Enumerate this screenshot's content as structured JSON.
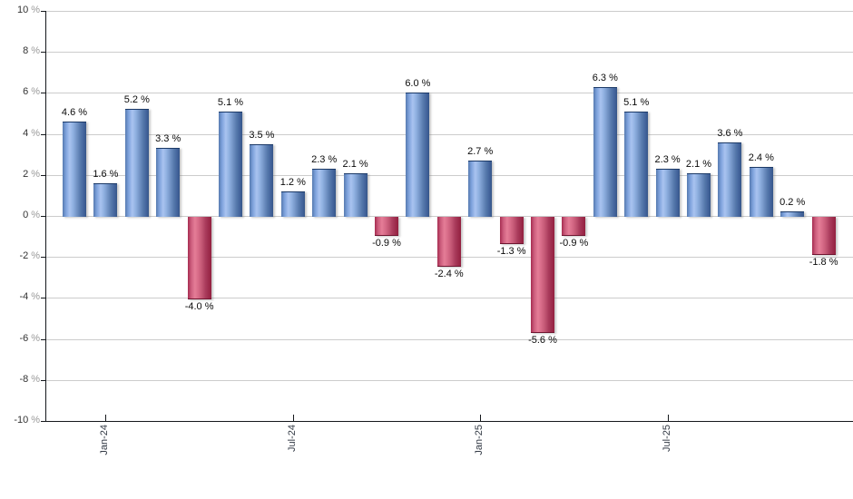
{
  "chart_data": {
    "type": "bar",
    "title": "",
    "xlabel": "",
    "ylabel": "",
    "ylim": [
      -10,
      10
    ],
    "grid": true,
    "legend": null,
    "values": [
      4.6,
      1.6,
      5.2,
      3.3,
      -4.0,
      5.1,
      3.5,
      1.2,
      2.3,
      2.1,
      -0.9,
      6.0,
      -2.4,
      2.7,
      -1.3,
      -5.6,
      -0.9,
      6.3,
      5.1,
      2.3,
      2.1,
      3.6,
      2.4,
      0.2,
      -1.8
    ],
    "bar_labels": [
      "4.6 %",
      "1.6 %",
      "5.2 %",
      "3.3 %",
      "-4.0 %",
      "5.1 %",
      "3.5 %",
      "1.2 %",
      "2.3 %",
      "2.1 %",
      "-0.9 %",
      "6.0 %",
      "-2.4 %",
      "2.7 %",
      "-1.3 %",
      "-5.6 %",
      "-0.9 %",
      "6.3 %",
      "5.1 %",
      "2.3 %",
      "2.1 %",
      "3.6 %",
      "2.4 %",
      "0.2 %",
      "-1.8 %"
    ],
    "x_ticks": [
      {
        "bar_index": 1,
        "label": "Jan-24"
      },
      {
        "bar_index": 7,
        "label": "Jul-24"
      },
      {
        "bar_index": 13,
        "label": "Jan-25"
      },
      {
        "bar_index": 19,
        "label": "Jul-25"
      }
    ],
    "y_ticks": [
      {
        "value": 10,
        "label": "10",
        "suffix": "%"
      },
      {
        "value": 8,
        "label": "8",
        "suffix": "%"
      },
      {
        "value": 6,
        "label": "6",
        "suffix": "%"
      },
      {
        "value": 4,
        "label": "4",
        "suffix": "%"
      },
      {
        "value": 2,
        "label": "2",
        "suffix": "%"
      },
      {
        "value": 0,
        "label": "0",
        "suffix": "%"
      },
      {
        "value": -2,
        "label": "-2",
        "suffix": "%"
      },
      {
        "value": -4,
        "label": "-4",
        "suffix": "%"
      },
      {
        "value": -6,
        "label": "-6",
        "suffix": "%"
      },
      {
        "value": -8,
        "label": "-8",
        "suffix": "%"
      },
      {
        "value": -10,
        "label": "-10",
        "suffix": "%"
      }
    ],
    "colors": {
      "positive_fill": "#7ea2dc",
      "positive_highlight": "#a9c3f0",
      "positive_edge": "#365689",
      "positive_border": "#1c3a68",
      "negative_fill": "#c25673",
      "negative_highlight": "#e57d97",
      "negative_edge": "#93203f",
      "negative_border": "#6f1530",
      "gridline": "#cccccc",
      "axis": "#15181c",
      "bar_label_text": "#0a0a0a",
      "y_tick_text": "#333333",
      "y_tick_suffix": "#999999",
      "x_tick_text": "#333a45"
    }
  }
}
